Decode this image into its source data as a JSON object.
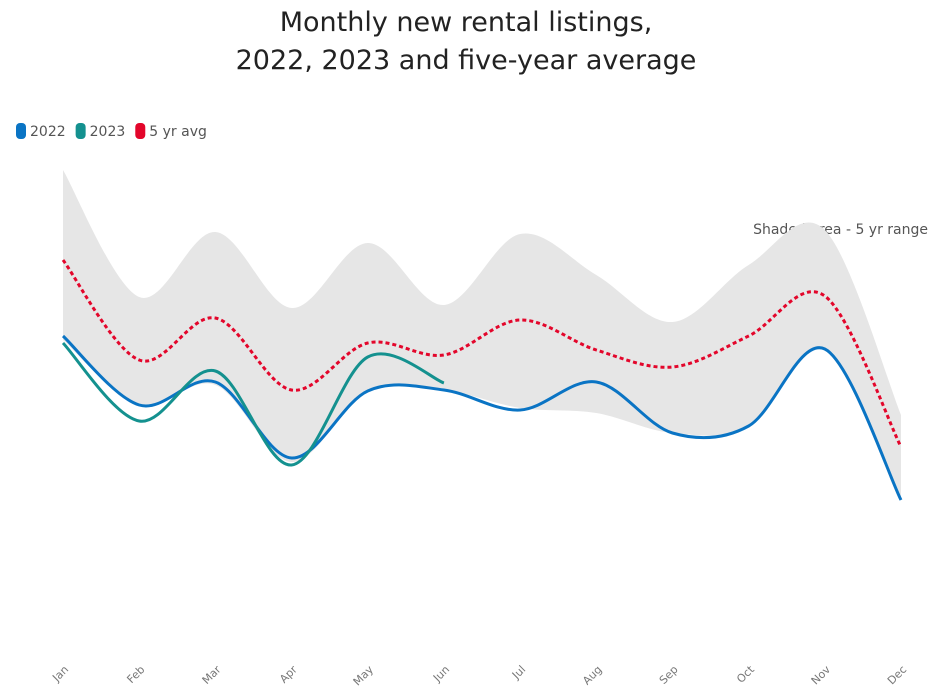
{
  "chart_data": {
    "type": "line",
    "title": "Monthly new rental listings,\n2022, 2023 and five-year average",
    "annotation": "Shaded area - 5 yr range",
    "categories": [
      "Jan",
      "Feb",
      "Mar",
      "Apr",
      "May",
      "Jun",
      "Jul",
      "Aug",
      "Sep",
      "Oct",
      "Nov",
      "Dec"
    ],
    "ylim": [
      0,
      480
    ],
    "legend": "top-left",
    "range": {
      "color": "#e6e6e6",
      "upper": [
        470,
        343,
        408,
        332,
        397,
        335,
        406,
        365,
        318,
        375,
        410,
        225
      ],
      "lower": [
        300,
        235,
        255,
        178,
        249,
        250,
        232,
        227,
        207,
        214,
        291,
        140
      ]
    },
    "series": [
      {
        "name": "2022",
        "color": "#0a74c4",
        "dash": false,
        "values": [
          304,
          235,
          258,
          182,
          249,
          250,
          230,
          258,
          207,
          214,
          291,
          140
        ]
      },
      {
        "name": "2023",
        "color": "#14918f",
        "dash": false,
        "values": [
          297,
          219,
          269,
          175,
          283,
          257,
          null,
          null,
          null,
          null,
          null,
          null
        ]
      },
      {
        "name": "5 yr avg",
        "color": "#e3062b",
        "dash": true,
        "values": [
          380,
          280,
          322,
          250,
          297,
          285,
          320,
          290,
          273,
          304,
          344,
          193
        ]
      }
    ]
  }
}
